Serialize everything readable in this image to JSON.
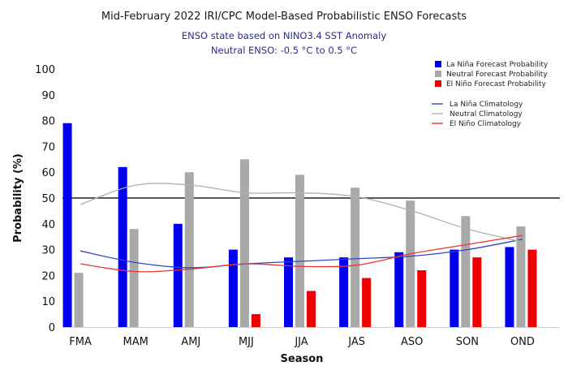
{
  "chart_data": {
    "type": "bar",
    "title": "Mid-February 2022 IRI/CPC Model-Based Probabilistic ENSO Forecasts",
    "subtitle_lines": [
      "ENSO state based on NINO3.4 SST Anomaly",
      "Neutral ENSO: -0.5 °C to 0.5 °C"
    ],
    "xlabel": "Season",
    "ylabel": "Probability (%)",
    "ylim": [
      0,
      100
    ],
    "yticks": [
      0,
      10,
      20,
      30,
      40,
      50,
      60,
      70,
      80,
      90,
      100
    ],
    "reference_line": 50,
    "categories": [
      "FMA",
      "MAM",
      "AMJ",
      "MJJ",
      "JJA",
      "JAS",
      "ASO",
      "SON",
      "OND"
    ],
    "series": [
      {
        "name": "La Niña Forecast Probability",
        "color": "#0000ee",
        "values": [
          79,
          62,
          40,
          30,
          27,
          27,
          29,
          30,
          31
        ]
      },
      {
        "name": "Neutral Forecast Probability",
        "color": "#a9a9a9",
        "values": [
          21,
          38,
          60,
          65,
          59,
          54,
          49,
          43,
          39
        ]
      },
      {
        "name": "El Niño Forecast Probability",
        "color": "#ee0000",
        "values": [
          0,
          0,
          0,
          5,
          14,
          19,
          22,
          27,
          30
        ]
      }
    ],
    "climatology": [
      {
        "name": "La Niña Climatology",
        "color": "#3344cc",
        "values": [
          29.5,
          25,
          23,
          24.5,
          25.5,
          26.5,
          27.5,
          30,
          34
        ]
      },
      {
        "name": "Neutral Climatology",
        "color": "#b0b0b0",
        "values": [
          47.5,
          55,
          55,
          52,
          52,
          50.5,
          45,
          38,
          33
        ]
      },
      {
        "name": "El Niño Climatology",
        "color": "#ee3333",
        "values": [
          24.5,
          21.5,
          22.5,
          24.5,
          23.5,
          24,
          28.5,
          32,
          35.5
        ]
      }
    ],
    "legend_position": "top-right",
    "grid": false
  }
}
